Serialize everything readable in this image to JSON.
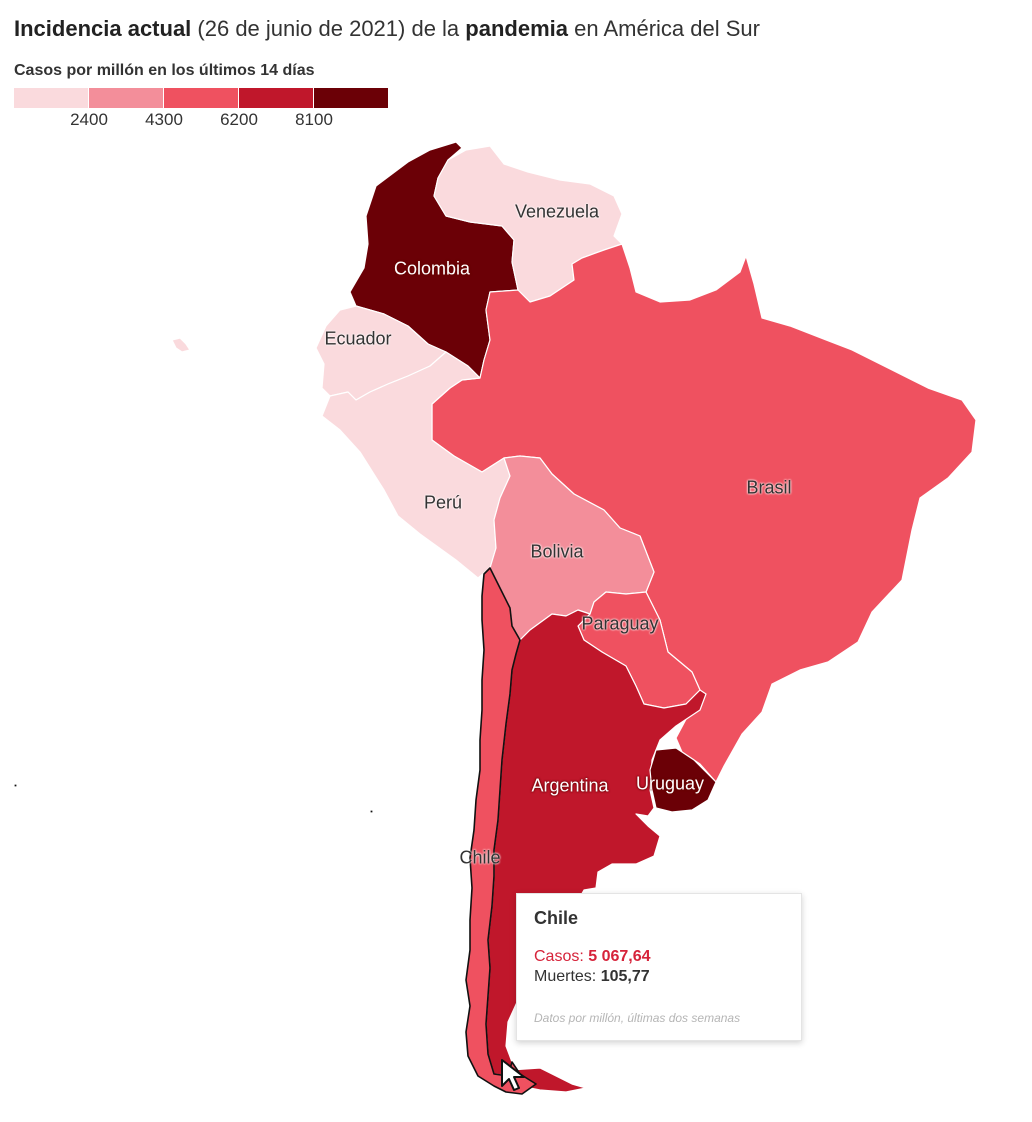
{
  "title": {
    "part1": "Incidencia actual",
    "part2": " (26 de junio de 2021) de la ",
    "part3": "pandemia",
    "part4": " en América del Sur"
  },
  "subtitle": "Casos por millón en los últimos 14 días",
  "legend": {
    "colors": [
      "#fadadd",
      "#f38e9a",
      "#ef5160",
      "#c0172b",
      "#6b0006"
    ],
    "ticks": [
      "2400",
      "4300",
      "6200",
      "8100"
    ]
  },
  "countries": [
    {
      "id": "colombia",
      "label": "Colombia",
      "color": "#6b0006"
    },
    {
      "id": "venezuela",
      "label": "Venezuela",
      "color": "#fadadd"
    },
    {
      "id": "ecuador",
      "label": "Ecuador",
      "color": "#fadadd"
    },
    {
      "id": "peru",
      "label": "Perú",
      "color": "#fadadd"
    },
    {
      "id": "brasil",
      "label": "Brasil",
      "color": "#ef5160"
    },
    {
      "id": "bolivia",
      "label": "Bolivia",
      "color": "#f38e9a"
    },
    {
      "id": "paraguay",
      "label": "Paraguay",
      "color": "#ef5160"
    },
    {
      "id": "argentina",
      "label": "Argentina",
      "color": "#c0172b"
    },
    {
      "id": "uruguay",
      "label": "Uruguay",
      "color": "#6b0006"
    },
    {
      "id": "chile",
      "label": "Chile",
      "color": "#ef5160"
    }
  ],
  "tooltip": {
    "country": "Chile",
    "cases_label": "Casos: ",
    "cases_value": "5 067,64",
    "deaths_label": "Muertes: ",
    "deaths_value": "105,77",
    "note": "Datos por millón, últimas dos semanas"
  }
}
